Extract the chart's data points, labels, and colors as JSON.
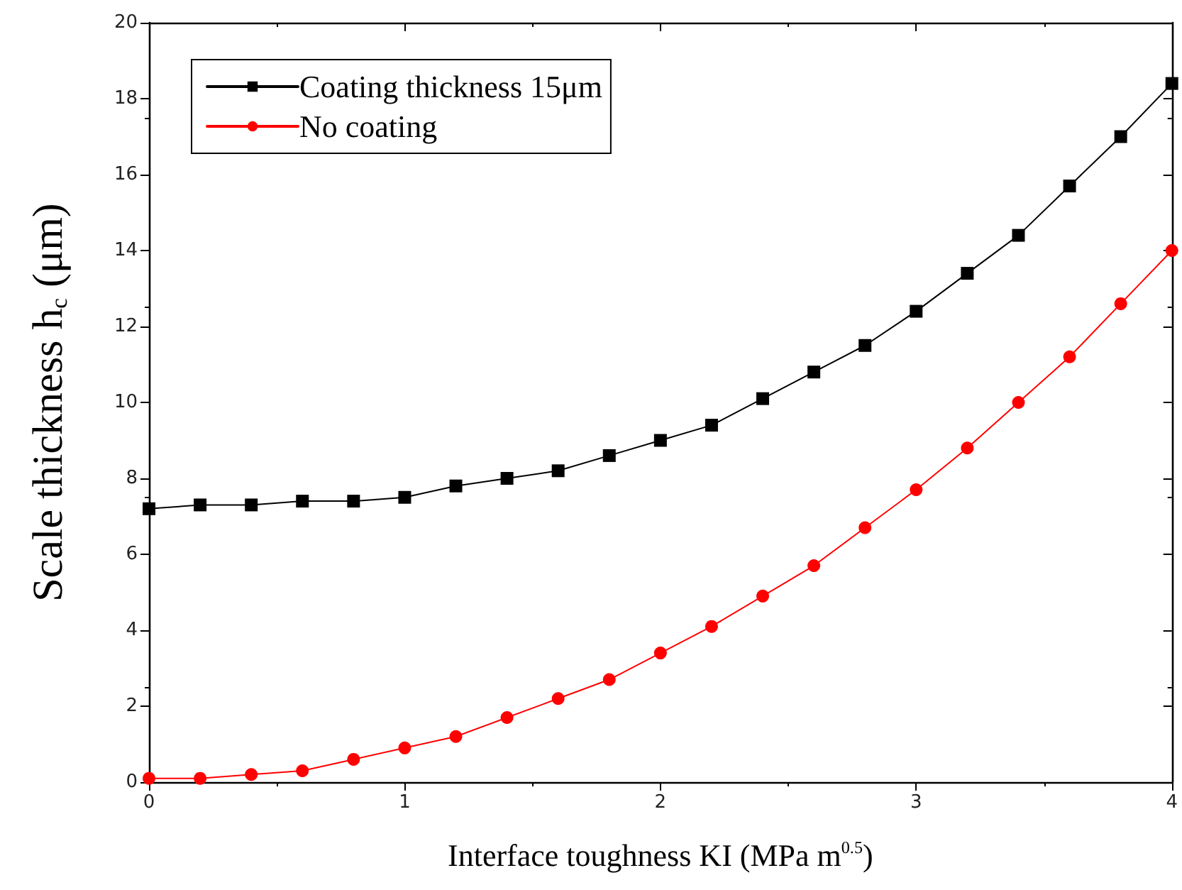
{
  "chart_data": {
    "type": "line",
    "xlabel": "Interface toughness KI (MPa m$^{0.5}$)",
    "ylabel": "Scale thickness h$_{c}$ (μm)",
    "x": [
      0,
      0.2,
      0.4,
      0.6,
      0.8,
      1.0,
      1.2,
      1.4,
      1.6,
      1.8,
      2.0,
      2.2,
      2.4,
      2.6,
      2.8,
      3.0,
      3.2,
      3.4,
      3.6,
      3.8,
      4.0
    ],
    "series": [
      {
        "name": "Coating thickness 15μm",
        "color": "#000000",
        "marker": "square",
        "values": [
          7.2,
          7.3,
          7.3,
          7.4,
          7.4,
          7.5,
          7.8,
          8.0,
          8.2,
          8.6,
          9.0,
          9.4,
          10.1,
          10.8,
          11.5,
          12.4,
          13.4,
          14.4,
          15.7,
          17.0,
          18.4
        ]
      },
      {
        "name": "No coating",
        "color": "#ff0000",
        "marker": "circle",
        "values": [
          0.1,
          0.1,
          0.2,
          0.3,
          0.6,
          0.9,
          1.2,
          1.7,
          2.2,
          2.7,
          3.4,
          4.1,
          4.9,
          5.7,
          6.7,
          7.7,
          8.8,
          10.0,
          11.2,
          12.6,
          14.0
        ]
      }
    ],
    "xlim": [
      0,
      4
    ],
    "xticks": [
      0,
      1,
      2,
      3,
      4
    ],
    "ylim": [
      0,
      20
    ],
    "yticks": [
      0,
      2,
      4,
      6,
      8,
      10,
      12,
      14,
      16,
      18,
      20
    ],
    "grid": false,
    "legend": "top left",
    "line_style": "solid"
  }
}
